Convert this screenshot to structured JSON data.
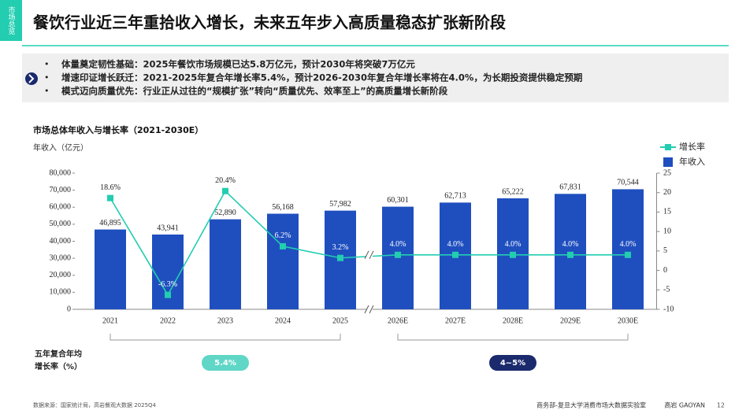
{
  "slide": {
    "tag": "市场总览",
    "title": "餐饮行业近三年重拾收入增长，未来五年步入高质量稳态扩张新阶段",
    "bullets": [
      "体量奠定韧性基础：2025年餐饮市场规模已达5.8万亿元，预计2030年将突破7万亿元",
      "增速印证增长跃迁：2021-2025年复合年增长率5.4%，预计2026-2030年复合年增长率将在4.0%，为长期投资提供稳定预期",
      "模式迈向质量优先：行业正从过往的“规模扩张”转向“质量优先、效率至上”的高质量增长新阶段"
    ],
    "footer": {
      "source": "数据来源：国家统计局，高岩餐观大数据 2025Q4",
      "org": "商务部-复旦大学消费市场大数据实验室",
      "brand": "高岩 GAOYAN",
      "page": "12"
    }
  },
  "chart_data": {
    "type": "bar",
    "title": "市场总体年收入与增长率（2021-2030E）",
    "y_label": "年收入（亿元）",
    "categories": [
      "2021",
      "2022",
      "2023",
      "2024",
      "2025",
      "2026E",
      "2027E",
      "2028E",
      "2029E",
      "2030E"
    ],
    "series": [
      {
        "name": "增长率",
        "type": "line",
        "axis": "y2",
        "color": "#22cdb0",
        "values": [
          18.6,
          -6.3,
          20.4,
          6.2,
          3.2,
          4.0,
          4.0,
          4.0,
          4.0,
          4.0
        ],
        "value_labels": [
          "18.6%",
          "-6.3%",
          "20.4%",
          "6.2%",
          "3.2%",
          "4.0%",
          "4.0%",
          "4.0%",
          "4.0%",
          "4.0%"
        ]
      },
      {
        "name": "年收入",
        "type": "bar",
        "color": "#1f4fbf",
        "values": [
          46895,
          43941,
          52890,
          56168,
          57982,
          60301,
          62713,
          65222,
          67831,
          70544
        ],
        "value_labels": [
          "46,895",
          "43,941",
          "52,890",
          "56,168",
          "57,982",
          "60,301",
          "62,713",
          "65,222",
          "67,831",
          "70,544"
        ]
      }
    ],
    "ylim": [
      0,
      80000
    ],
    "yticks": [
      0,
      {
        "value": 10000,
        "label": "10,000"
      },
      {
        "value": 20000,
        "label": "20,000"
      },
      {
        "value": 30000,
        "label": "30,000"
      },
      {
        "value": 40000,
        "label": "40,000"
      },
      {
        "value": 50000,
        "label": "50,000"
      },
      {
        "value": 60000,
        "label": "60,000"
      },
      {
        "value": 70000,
        "label": "70,000"
      },
      {
        "value": 80000,
        "label": "80,000"
      }
    ],
    "y2lim": [
      -10,
      25
    ],
    "y2ticks": [
      -10,
      -5,
      0,
      5,
      10,
      15,
      20,
      25
    ],
    "cagr": {
      "label_lines": [
        "五年复合年均",
        "增长率（%）"
      ],
      "periods": [
        "5.4%",
        "4~5%"
      ]
    }
  }
}
